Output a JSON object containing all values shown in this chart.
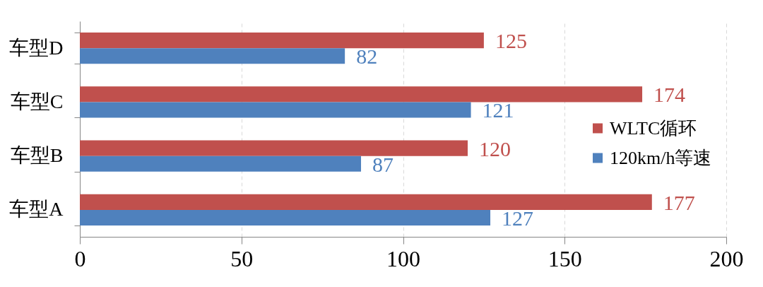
{
  "chart_data": {
    "type": "bar",
    "orientation": "horizontal",
    "categories": [
      "车型D",
      "车型C",
      "车型B",
      "车型A"
    ],
    "series": [
      {
        "name": "WLTC循环",
        "color": "#c0504d",
        "values": [
          125,
          174,
          120,
          177
        ]
      },
      {
        "name": "120km/h等速",
        "color": "#4f81bd",
        "values": [
          82,
          121,
          87,
          127
        ]
      }
    ],
    "xlim": [
      0,
      200
    ],
    "xticks": [
      0,
      50,
      100,
      150,
      200
    ],
    "grid": "x",
    "legend": "right",
    "data_labels": true
  }
}
